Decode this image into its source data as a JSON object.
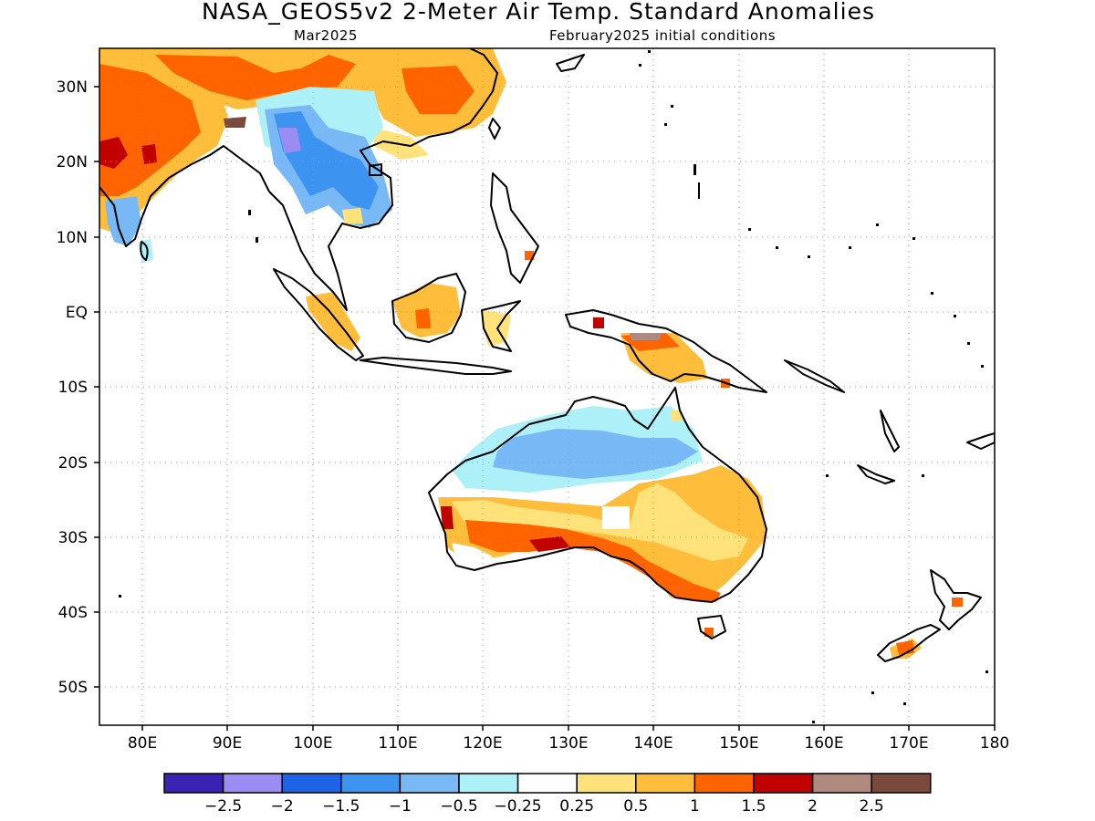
{
  "header": {
    "title": "NASA_GEOS5v2 2-Meter Air Temp. Standard Anomalies",
    "subtitle_left": "Mar2025",
    "subtitle_right": "February2025 initial conditions"
  },
  "map": {
    "lon_range": [
      75,
      180
    ],
    "lat_range": [
      -55,
      35
    ],
    "x_ticks": [
      "80E",
      "90E",
      "100E",
      "110E",
      "120E",
      "130E",
      "140E",
      "150E",
      "160E",
      "170E",
      "180"
    ],
    "y_ticks": [
      "30N",
      "20N",
      "10N",
      "EQ",
      "10S",
      "20S",
      "30S",
      "40S",
      "50S"
    ],
    "gridlines": "dotted"
  },
  "colorbar": {
    "colors": [
      "#3a22b5",
      "#9a8cf2",
      "#1e64e6",
      "#3d94f0",
      "#78b9f5",
      "#aef0f8",
      "#ffffff",
      "#ffe27a",
      "#ffbd3c",
      "#ff6400",
      "#c10000",
      "#b08a7e",
      "#7a4a3c"
    ],
    "labels": [
      "−2.5",
      "−2",
      "−1.5",
      "−1",
      "−0.5",
      "−0.25",
      "0.25",
      "0.5",
      "1",
      "1.5",
      "2",
      "2.5"
    ]
  },
  "anomaly_colors": {
    "strong_warm": "#c10000",
    "warm_1_5": "#ff6400",
    "warm_1": "#ffbd3c",
    "warm_0_5": "#ffe27a",
    "cool_0_25": "#aef0f8",
    "cool_0_5": "#78b9f5",
    "cool_1": "#3d94f0",
    "cool_1_5": "#1e64e6",
    "cool_2": "#9a8cf2",
    "extreme_2": "#b08a7e",
    "extreme_2_5": "#7a4a3c"
  }
}
